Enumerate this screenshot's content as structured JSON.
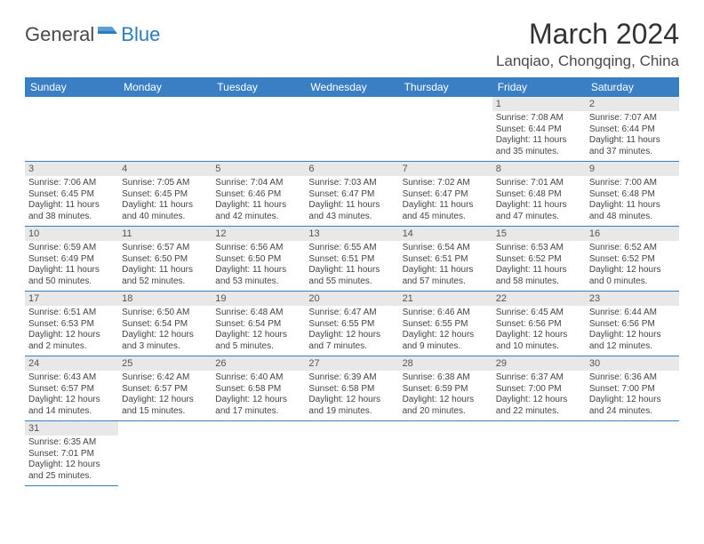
{
  "logo": {
    "text1": "General",
    "text2": "Blue"
  },
  "title": "March 2024",
  "location": "Lanqiao, Chongqing, China",
  "colors": {
    "header_bg": "#3a7fc4",
    "header_fg": "#ffffff",
    "daynum_bg": "#e8e8e8",
    "row_border": "#3a7fc4",
    "logo_blue": "#2d7cc1"
  },
  "weekdays": [
    "Sunday",
    "Monday",
    "Tuesday",
    "Wednesday",
    "Thursday",
    "Friday",
    "Saturday"
  ],
  "weeks": [
    [
      {
        "n": "",
        "sr": "",
        "ss": "",
        "dl": ""
      },
      {
        "n": "",
        "sr": "",
        "ss": "",
        "dl": ""
      },
      {
        "n": "",
        "sr": "",
        "ss": "",
        "dl": ""
      },
      {
        "n": "",
        "sr": "",
        "ss": "",
        "dl": ""
      },
      {
        "n": "",
        "sr": "",
        "ss": "",
        "dl": ""
      },
      {
        "n": "1",
        "sr": "Sunrise: 7:08 AM",
        "ss": "Sunset: 6:44 PM",
        "dl": "Daylight: 11 hours and 35 minutes."
      },
      {
        "n": "2",
        "sr": "Sunrise: 7:07 AM",
        "ss": "Sunset: 6:44 PM",
        "dl": "Daylight: 11 hours and 37 minutes."
      }
    ],
    [
      {
        "n": "3",
        "sr": "Sunrise: 7:06 AM",
        "ss": "Sunset: 6:45 PM",
        "dl": "Daylight: 11 hours and 38 minutes."
      },
      {
        "n": "4",
        "sr": "Sunrise: 7:05 AM",
        "ss": "Sunset: 6:45 PM",
        "dl": "Daylight: 11 hours and 40 minutes."
      },
      {
        "n": "5",
        "sr": "Sunrise: 7:04 AM",
        "ss": "Sunset: 6:46 PM",
        "dl": "Daylight: 11 hours and 42 minutes."
      },
      {
        "n": "6",
        "sr": "Sunrise: 7:03 AM",
        "ss": "Sunset: 6:47 PM",
        "dl": "Daylight: 11 hours and 43 minutes."
      },
      {
        "n": "7",
        "sr": "Sunrise: 7:02 AM",
        "ss": "Sunset: 6:47 PM",
        "dl": "Daylight: 11 hours and 45 minutes."
      },
      {
        "n": "8",
        "sr": "Sunrise: 7:01 AM",
        "ss": "Sunset: 6:48 PM",
        "dl": "Daylight: 11 hours and 47 minutes."
      },
      {
        "n": "9",
        "sr": "Sunrise: 7:00 AM",
        "ss": "Sunset: 6:48 PM",
        "dl": "Daylight: 11 hours and 48 minutes."
      }
    ],
    [
      {
        "n": "10",
        "sr": "Sunrise: 6:59 AM",
        "ss": "Sunset: 6:49 PM",
        "dl": "Daylight: 11 hours and 50 minutes."
      },
      {
        "n": "11",
        "sr": "Sunrise: 6:57 AM",
        "ss": "Sunset: 6:50 PM",
        "dl": "Daylight: 11 hours and 52 minutes."
      },
      {
        "n": "12",
        "sr": "Sunrise: 6:56 AM",
        "ss": "Sunset: 6:50 PM",
        "dl": "Daylight: 11 hours and 53 minutes."
      },
      {
        "n": "13",
        "sr": "Sunrise: 6:55 AM",
        "ss": "Sunset: 6:51 PM",
        "dl": "Daylight: 11 hours and 55 minutes."
      },
      {
        "n": "14",
        "sr": "Sunrise: 6:54 AM",
        "ss": "Sunset: 6:51 PM",
        "dl": "Daylight: 11 hours and 57 minutes."
      },
      {
        "n": "15",
        "sr": "Sunrise: 6:53 AM",
        "ss": "Sunset: 6:52 PM",
        "dl": "Daylight: 11 hours and 58 minutes."
      },
      {
        "n": "16",
        "sr": "Sunrise: 6:52 AM",
        "ss": "Sunset: 6:52 PM",
        "dl": "Daylight: 12 hours and 0 minutes."
      }
    ],
    [
      {
        "n": "17",
        "sr": "Sunrise: 6:51 AM",
        "ss": "Sunset: 6:53 PM",
        "dl": "Daylight: 12 hours and 2 minutes."
      },
      {
        "n": "18",
        "sr": "Sunrise: 6:50 AM",
        "ss": "Sunset: 6:54 PM",
        "dl": "Daylight: 12 hours and 3 minutes."
      },
      {
        "n": "19",
        "sr": "Sunrise: 6:48 AM",
        "ss": "Sunset: 6:54 PM",
        "dl": "Daylight: 12 hours and 5 minutes."
      },
      {
        "n": "20",
        "sr": "Sunrise: 6:47 AM",
        "ss": "Sunset: 6:55 PM",
        "dl": "Daylight: 12 hours and 7 minutes."
      },
      {
        "n": "21",
        "sr": "Sunrise: 6:46 AM",
        "ss": "Sunset: 6:55 PM",
        "dl": "Daylight: 12 hours and 9 minutes."
      },
      {
        "n": "22",
        "sr": "Sunrise: 6:45 AM",
        "ss": "Sunset: 6:56 PM",
        "dl": "Daylight: 12 hours and 10 minutes."
      },
      {
        "n": "23",
        "sr": "Sunrise: 6:44 AM",
        "ss": "Sunset: 6:56 PM",
        "dl": "Daylight: 12 hours and 12 minutes."
      }
    ],
    [
      {
        "n": "24",
        "sr": "Sunrise: 6:43 AM",
        "ss": "Sunset: 6:57 PM",
        "dl": "Daylight: 12 hours and 14 minutes."
      },
      {
        "n": "25",
        "sr": "Sunrise: 6:42 AM",
        "ss": "Sunset: 6:57 PM",
        "dl": "Daylight: 12 hours and 15 minutes."
      },
      {
        "n": "26",
        "sr": "Sunrise: 6:40 AM",
        "ss": "Sunset: 6:58 PM",
        "dl": "Daylight: 12 hours and 17 minutes."
      },
      {
        "n": "27",
        "sr": "Sunrise: 6:39 AM",
        "ss": "Sunset: 6:58 PM",
        "dl": "Daylight: 12 hours and 19 minutes."
      },
      {
        "n": "28",
        "sr": "Sunrise: 6:38 AM",
        "ss": "Sunset: 6:59 PM",
        "dl": "Daylight: 12 hours and 20 minutes."
      },
      {
        "n": "29",
        "sr": "Sunrise: 6:37 AM",
        "ss": "Sunset: 7:00 PM",
        "dl": "Daylight: 12 hours and 22 minutes."
      },
      {
        "n": "30",
        "sr": "Sunrise: 6:36 AM",
        "ss": "Sunset: 7:00 PM",
        "dl": "Daylight: 12 hours and 24 minutes."
      }
    ],
    [
      {
        "n": "31",
        "sr": "Sunrise: 6:35 AM",
        "ss": "Sunset: 7:01 PM",
        "dl": "Daylight: 12 hours and 25 minutes."
      },
      {
        "n": "",
        "sr": "",
        "ss": "",
        "dl": ""
      },
      {
        "n": "",
        "sr": "",
        "ss": "",
        "dl": ""
      },
      {
        "n": "",
        "sr": "",
        "ss": "",
        "dl": ""
      },
      {
        "n": "",
        "sr": "",
        "ss": "",
        "dl": ""
      },
      {
        "n": "",
        "sr": "",
        "ss": "",
        "dl": ""
      },
      {
        "n": "",
        "sr": "",
        "ss": "",
        "dl": ""
      }
    ]
  ]
}
